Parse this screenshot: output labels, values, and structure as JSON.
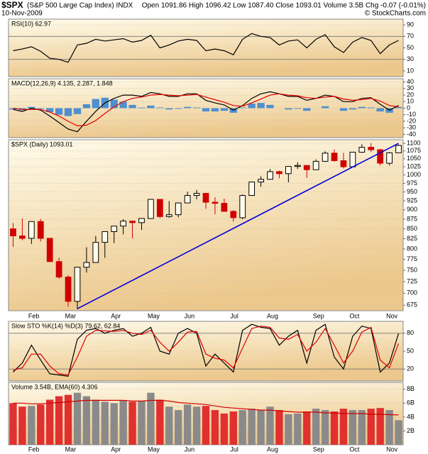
{
  "header": {
    "symbol": "$SPX",
    "name": "(S&P 500 Large Cap Index) INDX",
    "date": "10-Nov-2009",
    "quote": "Open 1091.86 High 1096.42 Low 1087.40 Close 1093.01 Volume 3.5B Chg -0.07 (-0.01%)",
    "credit": "© StockCharts.com"
  },
  "chart_data": [
    {
      "type": "line",
      "label": "RSI(10) 62.97",
      "ylim": [
        0,
        100
      ],
      "yticks": [
        10,
        30,
        50,
        70,
        90
      ],
      "levels": [
        30,
        70
      ],
      "grid": true,
      "series": [
        {
          "color": "#000000",
          "values": [
            45,
            48,
            52,
            44,
            32,
            30,
            25,
            55,
            58,
            65,
            62,
            64,
            66,
            60,
            63,
            72,
            50,
            55,
            62,
            65,
            63,
            45,
            48,
            45,
            38,
            65,
            75,
            70,
            68,
            55,
            62,
            64,
            50,
            65,
            73,
            52,
            42,
            60,
            68,
            63,
            40,
            55,
            62.97
          ]
        }
      ]
    },
    {
      "type": "macd",
      "label": "MACD(12,26,9) 4.135, 2.287, 1.848",
      "ylim": [
        -45,
        45
      ],
      "yticks": [
        -40,
        -30,
        -20,
        -10,
        0,
        10,
        20,
        30,
        40
      ],
      "grid": true,
      "series": [
        {
          "color": "#000000",
          "values": [
            -2,
            -5,
            0,
            -3,
            -12,
            -22,
            -32,
            -36,
            -20,
            -5,
            8,
            15,
            20,
            20,
            18,
            24,
            22,
            18,
            18,
            22,
            22,
            12,
            8,
            5,
            -3,
            4,
            15,
            22,
            25,
            22,
            18,
            18,
            12,
            15,
            20,
            18,
            10,
            10,
            15,
            16,
            6,
            -3,
            4.135
          ]
        },
        {
          "color": "#e00000",
          "values": [
            0,
            -2,
            -2,
            -2,
            -6,
            -12,
            -20,
            -27,
            -26,
            -19,
            -8,
            2,
            10,
            15,
            17,
            20,
            21,
            20,
            19,
            20,
            21,
            17,
            13,
            9,
            4,
            3,
            8,
            14,
            20,
            22,
            20,
            19,
            16,
            15,
            17,
            18,
            14,
            12,
            13,
            15,
            11,
            4,
            2.287
          ]
        }
      ],
      "histogram": {
        "color": "#4f8fcf",
        "values": [
          -2,
          -3,
          2,
          -1,
          -6,
          -10,
          -12,
          -9,
          6,
          14,
          16,
          13,
          10,
          5,
          1,
          4,
          1,
          -2,
          -1,
          2,
          1,
          -5,
          -5,
          -4,
          -7,
          1,
          7,
          8,
          5,
          0,
          -2,
          -1,
          -4,
          0,
          3,
          0,
          -4,
          -2,
          2,
          1,
          -5,
          -7,
          1.848
        ]
      }
    },
    {
      "type": "candlestick",
      "label": "$SPX (Daily) 1093.01",
      "log_scale": true,
      "ylim": [
        664,
        1112
      ],
      "yticks": [
        675,
        700,
        725,
        750,
        775,
        800,
        825,
        850,
        875,
        900,
        925,
        950,
        975,
        1000,
        1025,
        1050,
        1075,
        1100
      ],
      "grid": true,
      "categories": [
        null,
        null,
        "Feb",
        null,
        null,
        null,
        "Mar",
        null,
        null,
        null,
        null,
        "Apr",
        null,
        null,
        null,
        "May",
        null,
        null,
        null,
        "Jun",
        null,
        null,
        null,
        null,
        "Jul",
        null,
        null,
        null,
        "Aug",
        null,
        null,
        null,
        null,
        "Sep",
        null,
        null,
        null,
        "Oct",
        null,
        null,
        null,
        "Nov",
        null
      ],
      "open": [
        850,
        832,
        826,
        869,
        826,
        770,
        735,
        683,
        757,
        768,
        816,
        843,
        857,
        870,
        866,
        877,
        929,
        882,
        887,
        919,
        940,
        946,
        921,
        918,
        896,
        879,
        940,
        979,
        987,
        1010,
        1004,
        1026,
        1029,
        1016,
        1042,
        1068,
        1044,
        1025,
        1071,
        1087,
        1079,
        1036,
        1069
      ],
      "high": [
        865,
        877,
        870,
        876,
        827,
        779,
        739,
        758,
        804,
        832,
        842,
        857,
        875,
        871,
        878,
        930,
        930,
        924,
        920,
        951,
        956,
        946,
        935,
        931,
        899,
        943,
        980,
        996,
        1018,
        1013,
        1027,
        1039,
        1028,
        1048,
        1074,
        1080,
        1069,
        1071,
        1097,
        1101,
        1082,
        1071,
        1096
      ],
      "low": [
        805,
        821,
        812,
        818,
        770,
        731,
        672,
        667,
        745,
        768,
        779,
        814,
        836,
        826,
        847,
        878,
        878,
        879,
        880,
        920,
        929,
        903,
        888,
        896,
        869,
        875,
        940,
        965,
        987,
        990,
        978,
        1018,
        991,
        1016,
        1040,
        1041,
        1020,
        1026,
        1069,
        1071,
        1029,
        1029,
        1069
      ],
      "close": [
        832,
        826,
        869,
        826,
        770,
        735,
        683,
        757,
        768,
        816,
        843,
        857,
        870,
        866,
        877,
        929,
        882,
        887,
        919,
        940,
        946,
        921,
        918,
        896,
        879,
        940,
        979,
        987,
        1010,
        1004,
        1026,
        1029,
        1016,
        1042,
        1068,
        1044,
        1025,
        1071,
        1087,
        1079,
        1036,
        1069,
        1093
      ],
      "up_color": "#000000",
      "down_color": "#d00000",
      "trendline": {
        "color": "#0000dd",
        "x": [
          7,
          42
        ],
        "values": [
          668,
          1100
        ]
      }
    },
    {
      "type": "line",
      "label": "Slow STO %K(14) %D(3) 79.62, 62.84",
      "ylim": [
        0,
        100
      ],
      "yticks": [
        20,
        50,
        80
      ],
      "levels": [
        20,
        80
      ],
      "grid": true,
      "series": [
        {
          "color": "#000000",
          "values": [
            15,
            30,
            60,
            35,
            12,
            10,
            8,
            70,
            85,
            88,
            80,
            85,
            88,
            75,
            80,
            90,
            50,
            45,
            80,
            88,
            80,
            25,
            45,
            30,
            15,
            85,
            95,
            90,
            88,
            60,
            75,
            85,
            30,
            85,
            95,
            40,
            20,
            75,
            92,
            88,
            15,
            30,
            79.62
          ]
        },
        {
          "color": "#e00000",
          "values": [
            18,
            22,
            45,
            45,
            25,
            12,
            10,
            40,
            75,
            85,
            84,
            83,
            85,
            80,
            78,
            85,
            65,
            50,
            65,
            82,
            83,
            45,
            38,
            35,
            22,
            55,
            88,
            92,
            90,
            72,
            70,
            78,
            50,
            65,
            88,
            60,
            30,
            50,
            82,
            90,
            35,
            22,
            62.84
          ]
        }
      ]
    },
    {
      "type": "volume",
      "label": "Volume 3.54B, EMA(60) 4.306",
      "ylim": [
        0,
        9
      ],
      "yticks": [
        {
          "value": 2,
          "label": "2B"
        },
        {
          "value": 4,
          "label": "4B"
        },
        {
          "value": 6,
          "label": "6B"
        },
        {
          "value": 8,
          "label": "8B"
        }
      ],
      "grid": true,
      "values": [
        6.0,
        5.5,
        5.6,
        5.8,
        6.5,
        7.0,
        7.2,
        7.5,
        7.0,
        6.5,
        6.2,
        6.0,
        6.4,
        6.2,
        6.3,
        7.5,
        6.5,
        5.5,
        5.0,
        5.8,
        5.5,
        5.6,
        5.0,
        4.5,
        4.8,
        5.0,
        5.2,
        5.0,
        5.5,
        5.0,
        4.4,
        4.5,
        4.8,
        5.2,
        5.0,
        4.8,
        5.2,
        5.0,
        5.0,
        5.2,
        5.3,
        5.0,
        3.54
      ],
      "up_color": "#8a8a8a",
      "down_color": "#e03030",
      "ema": {
        "color": "#d00000",
        "values": [
          6.0,
          6.0,
          5.9,
          5.9,
          6.0,
          6.1,
          6.2,
          6.3,
          6.4,
          6.4,
          6.4,
          6.4,
          6.4,
          6.3,
          6.3,
          6.4,
          6.4,
          6.3,
          6.1,
          6.0,
          5.9,
          5.8,
          5.6,
          5.4,
          5.3,
          5.2,
          5.1,
          5.0,
          5.0,
          4.9,
          4.8,
          4.7,
          4.7,
          4.7,
          4.6,
          4.6,
          4.5,
          4.5,
          4.5,
          4.4,
          4.4,
          4.35,
          4.306
        ]
      }
    }
  ]
}
